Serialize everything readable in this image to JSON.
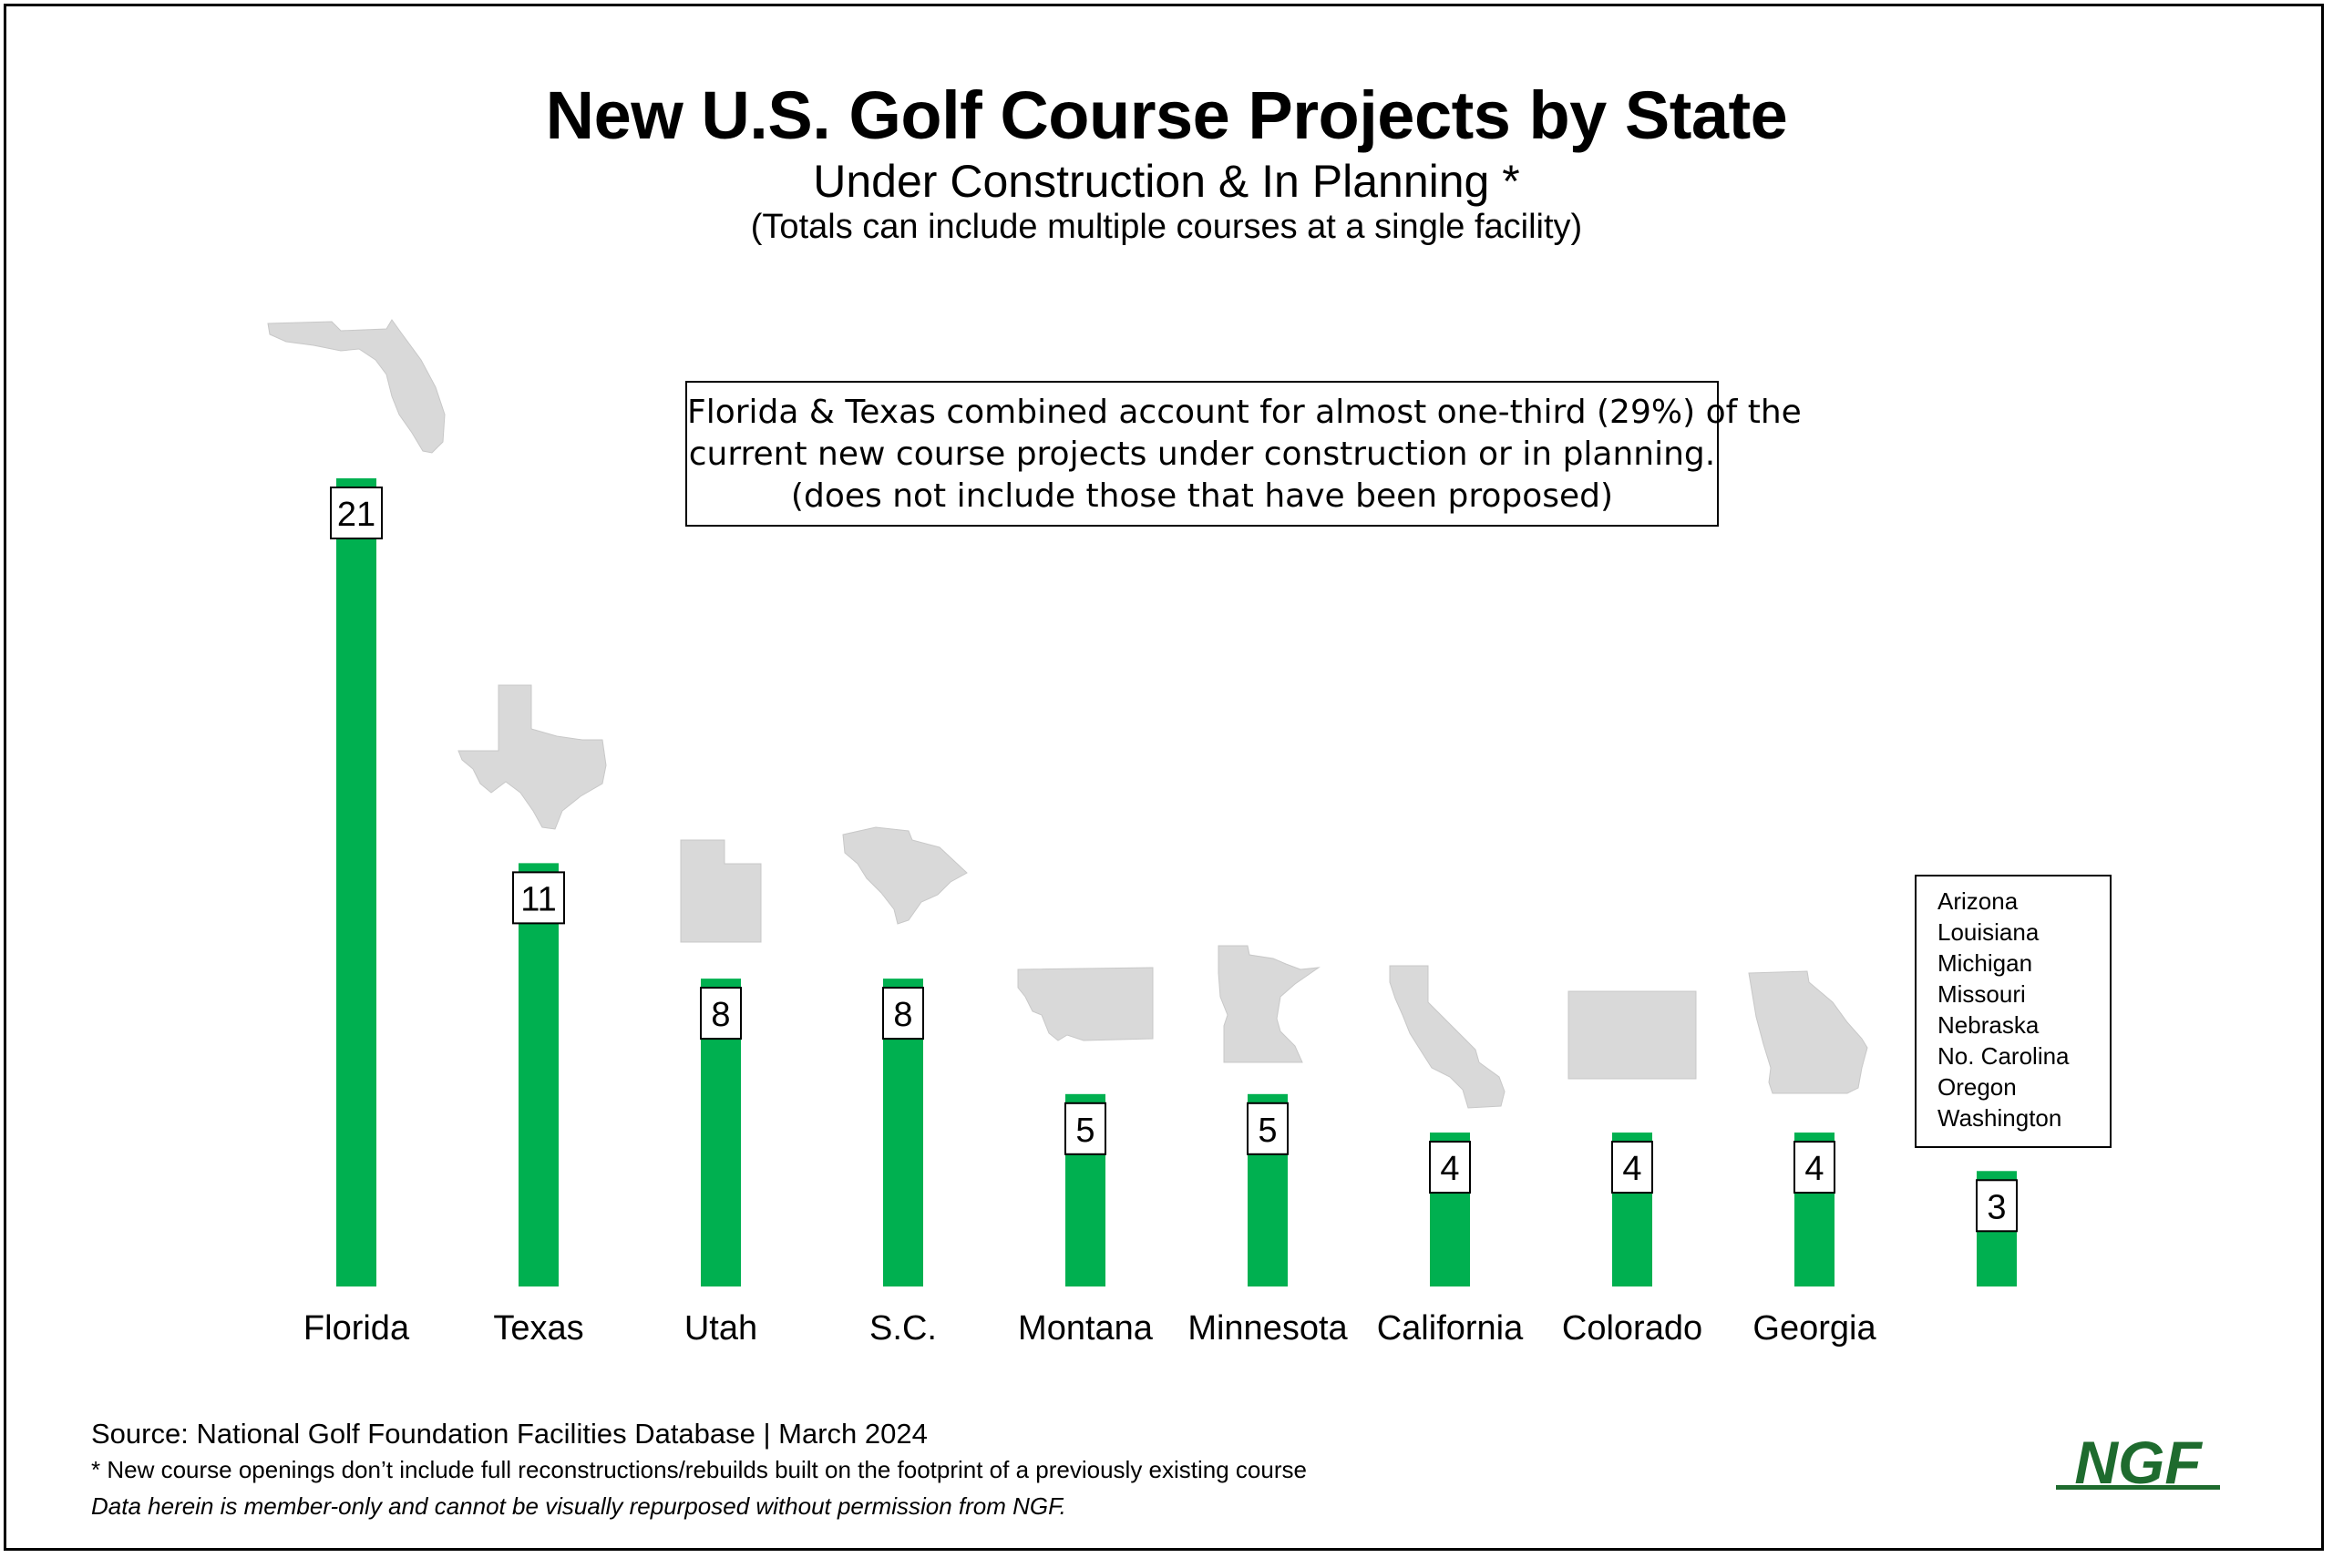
{
  "chart_data": {
    "type": "bar",
    "title": "New U.S. Golf Course Projects by State",
    "subtitle": "Under Construction & In Planning *",
    "subtitle2": "(Totals can include multiple courses at a single facility)",
    "categories": [
      "Florida",
      "Texas",
      "Utah",
      "S.C.",
      "Montana",
      "Minnesota",
      "California",
      "Colorado",
      "Georgia",
      ""
    ],
    "values": [
      21,
      11,
      8,
      8,
      5,
      5,
      4,
      4,
      4,
      3
    ],
    "data_labels": [
      "21",
      "11",
      "8",
      "8",
      "5",
      "5",
      "4",
      "4",
      "4",
      "3"
    ],
    "xlabel": "",
    "ylabel": "",
    "ylim": [
      0,
      21
    ],
    "grid": false,
    "bar_color": "#00b050",
    "state_shape_color": "#d9d9d9",
    "state_icons": [
      "florida-shape",
      "texas-shape",
      "utah-shape",
      "south-carolina-shape",
      "montana-shape",
      "minnesota-shape",
      "california-shape",
      "colorado-shape",
      "georgia-shape"
    ],
    "callout_lines": [
      "Florida & Texas combined account for almost one-third (29%) of the",
      "current new course projects under construction or in planning.",
      "(does not include those that have been proposed)"
    ],
    "other_states": [
      "Arizona",
      "Louisiana",
      "Michigan",
      "Missouri",
      "Nebraska",
      "No. Carolina",
      "Oregon",
      "Washington"
    ]
  },
  "footer": {
    "source": "Source: National Golf Foundation Facilities Database  | March 2024",
    "footnote": "* New course openings don’t include full reconstructions/rebuilds built on the footprint of a previously existing course",
    "disclaimer": "Data herein is member-only and cannot be visually repurposed without permission from NGF.",
    "logo_text": "NGF",
    "logo_color": "#1e6b2e"
  }
}
